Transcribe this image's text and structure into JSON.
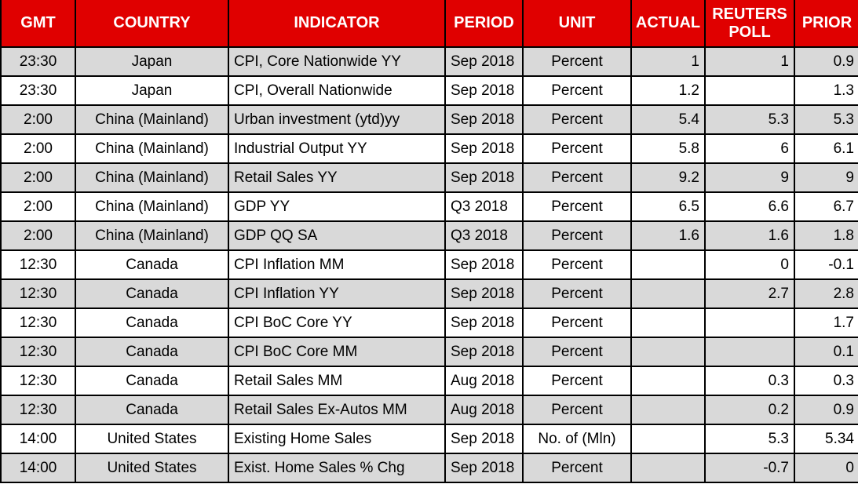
{
  "colors": {
    "header_bg": "#e00000",
    "header_text": "#ffffff",
    "row_shaded_bg": "#d9d9d9",
    "row_plain_bg": "#ffffff",
    "border": "#000000",
    "cell_text": "#000000"
  },
  "chart_data": {
    "type": "table",
    "columns": [
      {
        "id": "gmt",
        "label": "GMT",
        "align": "center"
      },
      {
        "id": "country",
        "label": "COUNTRY",
        "align": "center"
      },
      {
        "id": "indicator",
        "label": "INDICATOR",
        "align": "left"
      },
      {
        "id": "period",
        "label": "PERIOD",
        "align": "left"
      },
      {
        "id": "unit",
        "label": "UNIT",
        "align": "center"
      },
      {
        "id": "actual",
        "label": "ACTUAL",
        "align": "right"
      },
      {
        "id": "reuters_poll",
        "label": "REUTERS POLL",
        "align": "right"
      },
      {
        "id": "prior",
        "label": "PRIOR",
        "align": "right"
      }
    ],
    "rows": [
      [
        "23:30",
        "Japan",
        "CPI, Core Nationwide YY",
        "Sep 2018",
        "Percent",
        "1",
        "1",
        "0.9"
      ],
      [
        "23:30",
        "Japan",
        "CPI, Overall Nationwide",
        "Sep 2018",
        "Percent",
        "1.2",
        "",
        "1.3"
      ],
      [
        "2:00",
        "China (Mainland)",
        "Urban investment (ytd)yy",
        "Sep 2018",
        "Percent",
        "5.4",
        "5.3",
        "5.3"
      ],
      [
        "2:00",
        "China (Mainland)",
        "Industrial Output YY",
        "Sep 2018",
        "Percent",
        "5.8",
        "6",
        "6.1"
      ],
      [
        "2:00",
        "China (Mainland)",
        "Retail Sales YY",
        "Sep 2018",
        "Percent",
        "9.2",
        "9",
        "9"
      ],
      [
        "2:00",
        "China (Mainland)",
        "GDP YY",
        "Q3 2018",
        "Percent",
        "6.5",
        "6.6",
        "6.7"
      ],
      [
        "2:00",
        "China (Mainland)",
        "GDP QQ SA",
        "Q3 2018",
        "Percent",
        "1.6",
        "1.6",
        "1.8"
      ],
      [
        "12:30",
        "Canada",
        "CPI Inflation MM",
        "Sep 2018",
        "Percent",
        "",
        "0",
        "-0.1"
      ],
      [
        "12:30",
        "Canada",
        "CPI Inflation YY",
        "Sep 2018",
        "Percent",
        "",
        "2.7",
        "2.8"
      ],
      [
        "12:30",
        "Canada",
        "CPI BoC Core YY",
        "Sep 2018",
        "Percent",
        "",
        "",
        "1.7"
      ],
      [
        "12:30",
        "Canada",
        "CPI BoC Core MM",
        "Sep 2018",
        "Percent",
        "",
        "",
        "0.1"
      ],
      [
        "12:30",
        "Canada",
        "Retail Sales MM",
        "Aug 2018",
        "Percent",
        "",
        "0.3",
        "0.3"
      ],
      [
        "12:30",
        "Canada",
        "Retail Sales Ex-Autos MM",
        "Aug 2018",
        "Percent",
        "",
        "0.2",
        "0.9"
      ],
      [
        "14:00",
        "United States",
        "Existing Home Sales",
        "Sep 2018",
        "No. of (Mln)",
        "",
        "5.3",
        "5.34"
      ],
      [
        "14:00",
        "United States",
        "Exist. Home Sales % Chg",
        "Sep 2018",
        "Percent",
        "",
        "-0.7",
        "0"
      ]
    ]
  }
}
